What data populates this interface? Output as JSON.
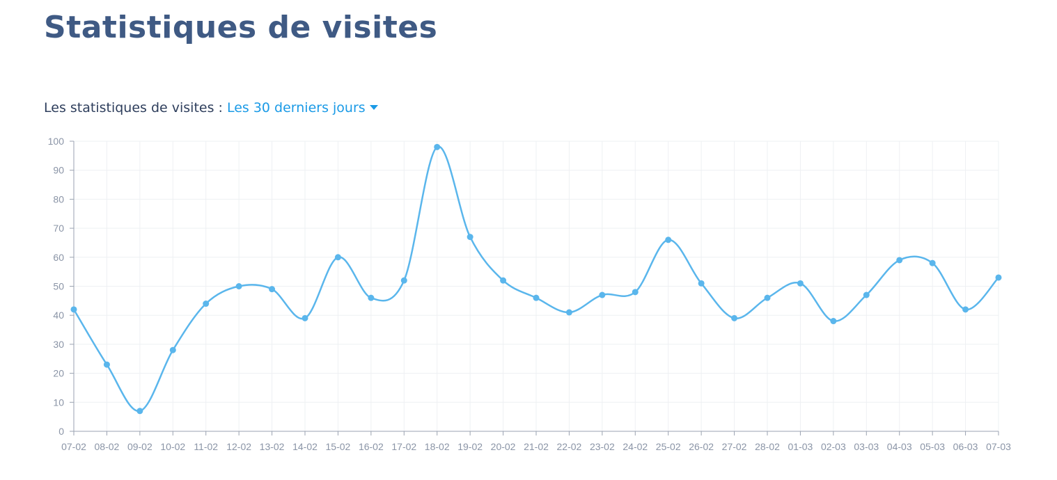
{
  "header": {
    "title": "Statistiques de visites"
  },
  "period": {
    "label": "Les statistiques de visites :",
    "selected": "Les 30 derniers jours",
    "icon": "caret-down-icon"
  },
  "colors": {
    "title": "#3f5a84",
    "accent": "#1a9ae6",
    "series": "#5ab6ec",
    "grid": "#eef0f3",
    "axis": "#9aa2b0",
    "tick_text": "#8a94a6"
  },
  "chart_data": {
    "type": "line",
    "title": "",
    "xlabel": "",
    "ylabel": "",
    "ylim": [
      0,
      100
    ],
    "yticks": [
      0,
      10,
      20,
      30,
      40,
      50,
      60,
      70,
      80,
      90,
      100
    ],
    "grid": true,
    "smooth": true,
    "categories": [
      "07-02",
      "08-02",
      "09-02",
      "10-02",
      "11-02",
      "12-02",
      "13-02",
      "14-02",
      "15-02",
      "16-02",
      "17-02",
      "18-02",
      "19-02",
      "20-02",
      "21-02",
      "22-02",
      "23-02",
      "24-02",
      "25-02",
      "26-02",
      "27-02",
      "28-02",
      "01-03",
      "02-03",
      "03-03",
      "04-03",
      "05-03",
      "06-03",
      "07-03"
    ],
    "series": [
      {
        "values": [
          42,
          23,
          7,
          28,
          44,
          50,
          49,
          39,
          60,
          46,
          52,
          98,
          67,
          52,
          46,
          41,
          47,
          48,
          66,
          51,
          39,
          46,
          51,
          38,
          47,
          59,
          58,
          42,
          53
        ]
      }
    ]
  }
}
